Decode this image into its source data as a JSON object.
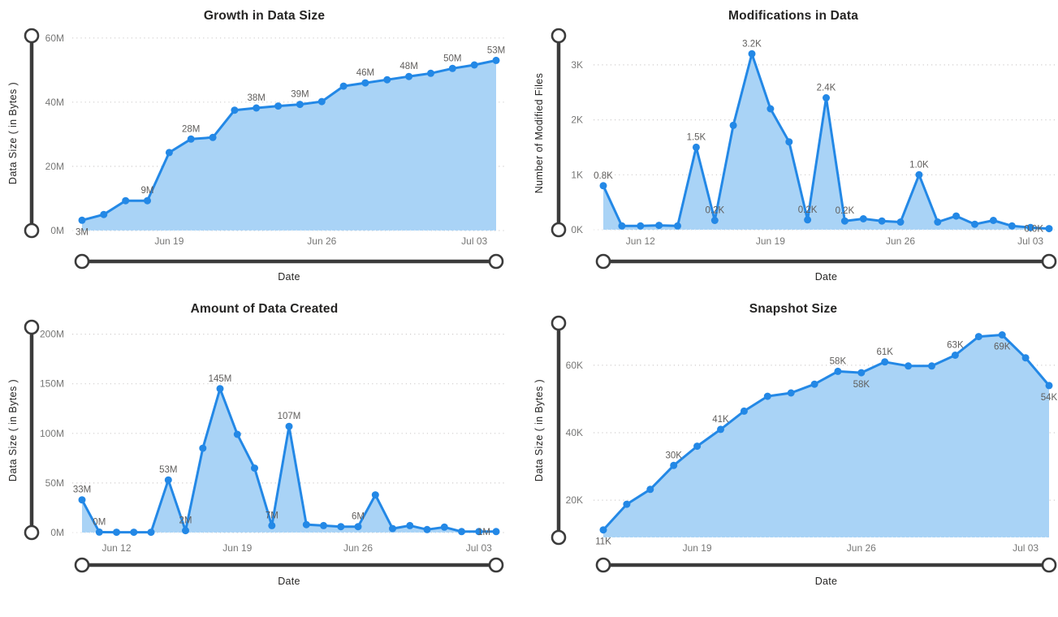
{
  "page": {
    "background": "#FFFFFF"
  },
  "style": {
    "line_color": "#2388E6",
    "area_color": "#A9D3F6",
    "point_color": "#2388E6",
    "data_label_color": "#605E5C",
    "tick_label_color": "#777776",
    "title_color": "#252423",
    "grid_color": "#D0CECE",
    "baseline_dot_color": "rgba(255,255,255,0.6)",
    "slider_color": "#3B3B3B",
    "slider_handle_fill": "#FFFFFF"
  },
  "chart_data": [
    {
      "type": "area",
      "title": "Growth in Data Size",
      "x_axis_label": "Date",
      "y_axis_label": "Data Size ( in Bytes )",
      "grid": "horizontal-dotted",
      "legend": "none",
      "zoom_sliders": [
        "vertical",
        "horizontal"
      ],
      "y_range": [
        0,
        60.7
      ],
      "y_ticks": [
        {
          "value": 0,
          "label": "0M"
        },
        {
          "value": 20,
          "label": "20M"
        },
        {
          "value": 40,
          "label": "40M"
        },
        {
          "value": 60,
          "label": "60M"
        }
      ],
      "x_ticks": [
        {
          "index": 4,
          "label": "Jun 19"
        },
        {
          "index": 11,
          "label": "Jun 26"
        },
        {
          "index": 18,
          "label": "Jul 03"
        }
      ],
      "values": [
        3.2,
        5,
        9.3,
        9.3,
        24.3,
        28.5,
        29,
        37.5,
        38.2,
        38.8,
        39.3,
        40.2,
        45,
        46,
        47,
        48,
        49,
        50.5,
        51.6,
        53
      ],
      "data_labels": [
        {
          "index": 0,
          "text": "3M",
          "position": "below"
        },
        {
          "index": 3,
          "text": "9M",
          "position": "above"
        },
        {
          "index": 5,
          "text": "28M",
          "position": "above"
        },
        {
          "index": 8,
          "text": "38M",
          "position": "above"
        },
        {
          "index": 10,
          "text": "39M",
          "position": "above"
        },
        {
          "index": 13,
          "text": "46M",
          "position": "above"
        },
        {
          "index": 15,
          "text": "48M",
          "position": "above"
        },
        {
          "index": 17,
          "text": "50M",
          "position": "above"
        },
        {
          "index": 19,
          "text": "53M",
          "position": "above"
        }
      ]
    },
    {
      "type": "area",
      "title": "Modifications in Data",
      "x_axis_label": "Date",
      "y_axis_label": "Number of Modified Files",
      "grid": "horizontal-dotted",
      "legend": "none",
      "zoom_sliders": [
        "vertical",
        "horizontal"
      ],
      "y_range": [
        0,
        3.53
      ],
      "y_ticks": [
        {
          "value": 0,
          "label": "0K"
        },
        {
          "value": 1,
          "label": "1K"
        },
        {
          "value": 2,
          "label": "2K"
        },
        {
          "value": 3,
          "label": "3K"
        }
      ],
      "x_ticks": [
        {
          "index": 2,
          "label": "Jun 12"
        },
        {
          "index": 9,
          "label": "Jun 19"
        },
        {
          "index": 16,
          "label": "Jun 26"
        },
        {
          "index": 23,
          "label": "Jul 03"
        }
      ],
      "values": [
        0.8,
        0.07,
        0.07,
        0.08,
        0.07,
        1.5,
        0.17,
        1.9,
        3.2,
        2.2,
        1.6,
        0.18,
        2.4,
        0.16,
        0.2,
        0.16,
        0.14,
        1.0,
        0.14,
        0.25,
        0.1,
        0.17,
        0.07,
        0.04,
        0.02
      ],
      "data_labels": [
        {
          "index": 0,
          "text": "0.8K",
          "position": "above"
        },
        {
          "index": 5,
          "text": "1.5K",
          "position": "above"
        },
        {
          "index": 6,
          "text": "0.2K",
          "position": "above"
        },
        {
          "index": 8,
          "text": "3.2K",
          "position": "above"
        },
        {
          "index": 11,
          "text": "0.2K",
          "position": "above"
        },
        {
          "index": 12,
          "text": "2.4K",
          "position": "above"
        },
        {
          "index": 13,
          "text": "0.2K",
          "position": "above"
        },
        {
          "index": 17,
          "text": "1.0K",
          "position": "above"
        },
        {
          "index": 24,
          "text": "0.0K",
          "position": "left"
        }
      ]
    },
    {
      "type": "area",
      "title": "Amount of Data Created",
      "x_axis_label": "Date",
      "y_axis_label": "Data Size ( in Bytes )",
      "grid": "horizontal-dotted",
      "legend": "none",
      "zoom_sliders": [
        "vertical",
        "horizontal"
      ],
      "y_range": [
        0,
        207
      ],
      "y_ticks": [
        {
          "value": 0,
          "label": "0M"
        },
        {
          "value": 50,
          "label": "50M"
        },
        {
          "value": 100,
          "label": "100M"
        },
        {
          "value": 150,
          "label": "150M"
        },
        {
          "value": 200,
          "label": "200M"
        }
      ],
      "x_ticks": [
        {
          "index": 2,
          "label": "Jun 12"
        },
        {
          "index": 9,
          "label": "Jun 19"
        },
        {
          "index": 16,
          "label": "Jun 26"
        },
        {
          "index": 23,
          "label": "Jul 03"
        }
      ],
      "values": [
        33,
        0.5,
        0.3,
        0.3,
        0.3,
        53,
        2,
        85,
        145,
        99,
        65,
        7,
        107,
        8,
        7,
        6,
        6,
        38,
        4,
        7,
        3,
        5.5,
        1,
        1,
        1
      ],
      "data_labels": [
        {
          "index": 0,
          "text": "33M",
          "position": "above"
        },
        {
          "index": 1,
          "text": "0M",
          "position": "above"
        },
        {
          "index": 5,
          "text": "53M",
          "position": "above"
        },
        {
          "index": 6,
          "text": "2M",
          "position": "above"
        },
        {
          "index": 8,
          "text": "145M",
          "position": "above"
        },
        {
          "index": 11,
          "text": "7M",
          "position": "above"
        },
        {
          "index": 12,
          "text": "107M",
          "position": "above"
        },
        {
          "index": 16,
          "text": "6M",
          "position": "above"
        },
        {
          "index": 24,
          "text": "1M",
          "position": "left"
        }
      ]
    },
    {
      "type": "area",
      "title": "Snapshot Size",
      "x_axis_label": "Date",
      "y_axis_label": "Data Size ( in Bytes )",
      "grid": "horizontal-dotted",
      "legend": "none",
      "zoom_sliders": [
        "vertical",
        "horizontal"
      ],
      "y_range": [
        8.95,
        72.5
      ],
      "y_ticks": [
        {
          "value": 20,
          "label": "20K"
        },
        {
          "value": 40,
          "label": "40K"
        },
        {
          "value": 60,
          "label": "60K"
        }
      ],
      "x_ticks": [
        {
          "index": 4,
          "label": "Jun 19"
        },
        {
          "index": 11,
          "label": "Jun 26"
        },
        {
          "index": 18,
          "label": "Jul 03"
        }
      ],
      "values": [
        11.2,
        18.8,
        23.2,
        30.3,
        36,
        41,
        46.4,
        50.8,
        51.8,
        54.4,
        58.2,
        57.8,
        61,
        59.8,
        59.8,
        63,
        68.5,
        69,
        62.2,
        54
      ],
      "data_labels": [
        {
          "index": 0,
          "text": "11K",
          "position": "below"
        },
        {
          "index": 3,
          "text": "30K",
          "position": "above"
        },
        {
          "index": 5,
          "text": "41K",
          "position": "above"
        },
        {
          "index": 10,
          "text": "58K",
          "position": "above"
        },
        {
          "index": 11,
          "text": "58K",
          "position": "below"
        },
        {
          "index": 12,
          "text": "61K",
          "position": "above"
        },
        {
          "index": 15,
          "text": "63K",
          "position": "above"
        },
        {
          "index": 17,
          "text": "69K",
          "position": "below"
        },
        {
          "index": 19,
          "text": "54K",
          "position": "below"
        }
      ]
    }
  ]
}
